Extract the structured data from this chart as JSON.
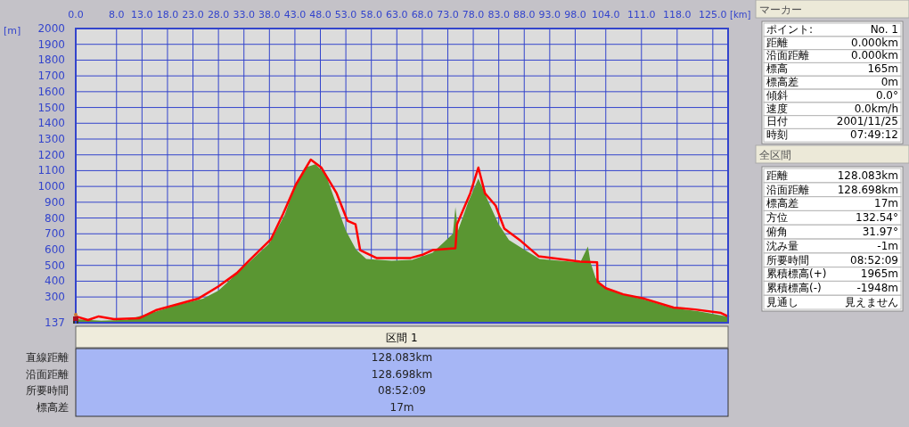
{
  "chart_data": [
    {
      "type": "area",
      "xlabel": "[km]",
      "ylabel": "[m]",
      "xlim": [
        0,
        128
      ],
      "ylim": [
        137,
        2000
      ],
      "xticks": [
        {
          "value": 0,
          "label": "0.0"
        },
        {
          "value": 8,
          "label": "8.0"
        },
        {
          "value": 13,
          "label": "13.0"
        },
        {
          "value": 18,
          "label": "18.0"
        },
        {
          "value": 23,
          "label": "23.0"
        },
        {
          "value": 28,
          "label": "28.0"
        },
        {
          "value": 33,
          "label": "33.0"
        },
        {
          "value": 38,
          "label": "38.0"
        },
        {
          "value": 43,
          "label": "43.0"
        },
        {
          "value": 48,
          "label": "48.0"
        },
        {
          "value": 53,
          "label": "53.0"
        },
        {
          "value": 58,
          "label": "58.0"
        },
        {
          "value": 63,
          "label": "63.0"
        },
        {
          "value": 68,
          "label": "68.0"
        },
        {
          "value": 73,
          "label": "73.0"
        },
        {
          "value": 78,
          "label": "78.0"
        },
        {
          "value": 83,
          "label": "83.0"
        },
        {
          "value": 88,
          "label": "88.0"
        },
        {
          "value": 93,
          "label": "93.0"
        },
        {
          "value": 98,
          "label": "98.0"
        },
        {
          "value": 104,
          "label": "104.0"
        },
        {
          "value": 111,
          "label": "111.0"
        },
        {
          "value": 118,
          "label": "118.0"
        },
        {
          "value": 125,
          "label": "125.0"
        }
      ],
      "yticks": [
        137,
        300,
        400,
        500,
        600,
        700,
        800,
        900,
        1000,
        1100,
        1200,
        1300,
        1400,
        1500,
        1600,
        1700,
        1800,
        1900,
        2000
      ],
      "grid": true,
      "series": [
        {
          "type": "area",
          "color": "#5a9632",
          "x": [
            0,
            5,
            10,
            15,
            20,
            25,
            28,
            31,
            34,
            38,
            41,
            43,
            45,
            47,
            49,
            51,
            53,
            55,
            57,
            62,
            66,
            70,
            72,
            74,
            74.5,
            75,
            77,
            79,
            81,
            83,
            85,
            88,
            91,
            95,
            99,
            100.5,
            101,
            102,
            104,
            108,
            112,
            117,
            122,
            128
          ],
          "values": [
            160,
            150,
            155,
            200,
            250,
            290,
            340,
            430,
            520,
            640,
            820,
            1000,
            1120,
            1140,
            1080,
            900,
            720,
            600,
            540,
            530,
            535,
            580,
            640,
            700,
            870,
            720,
            900,
            1050,
            900,
            760,
            660,
            600,
            540,
            530,
            520,
            620,
            520,
            420,
            350,
            310,
            280,
            230,
            210,
            175
          ]
        },
        {
          "type": "line",
          "color": "#ff0000",
          "x": [
            0,
            2.4,
            4.5,
            7.5,
            12.4,
            15.7,
            24,
            28,
            31.6,
            34,
            38.3,
            40.7,
            43.2,
            46.1,
            48.2,
            51.2,
            53.3,
            54.9,
            55.8,
            59,
            65.7,
            68.2,
            70,
            74.5,
            74.8,
            77.4,
            79,
            80.3,
            82.4,
            84.1,
            87.4,
            90.8,
            99,
            102.3,
            102.4,
            104,
            107.4,
            111.6,
            117.3,
            121.5,
            126.6,
            128
          ],
          "values": [
            177,
            154,
            177,
            160,
            165,
            216,
            289,
            367,
            451,
            530,
            665,
            827,
            1012,
            1170,
            1119,
            956,
            783,
            760,
            597,
            547,
            547,
            569,
            597,
            609,
            760,
            956,
            1119,
            956,
            878,
            732,
            653,
            558,
            524,
            519,
            395,
            356,
            317,
            289,
            233,
            221,
            199,
            177
          ]
        }
      ]
    },
    {
      "type": "other",
      "title": "マーカー",
      "annotations": [
        "ポイント:",
        "No. 1",
        "距離",
        "0.000km",
        "沿面距離",
        "0.000km",
        "標高",
        "165m",
        "標高差",
        "0m",
        "傾斜",
        "0.0°",
        "速度",
        "0.0km/h",
        "日付",
        "2001/11/25",
        "時刻",
        "07:49:12"
      ]
    },
    {
      "type": "other",
      "title": "全区間",
      "annotations": [
        "距離",
        "128.083km",
        "沿面距離",
        "128.698km",
        "標高差",
        "17m",
        "方位",
        "132.54°",
        "俯角",
        "31.97°",
        "沈み量",
        "-1m",
        "所要時間",
        "08:52:09",
        "累積標高(+)",
        "1965m",
        "累積標高(-)",
        "-1948m",
        "見通し",
        "見えません"
      ]
    },
    {
      "type": "other",
      "title": "区間 1",
      "annotations": [
        "直線距離",
        "128.083km",
        "沿面距離",
        "128.698km",
        "所要時間",
        "08:52:09",
        "標高差",
        "17m"
      ]
    }
  ]
}
